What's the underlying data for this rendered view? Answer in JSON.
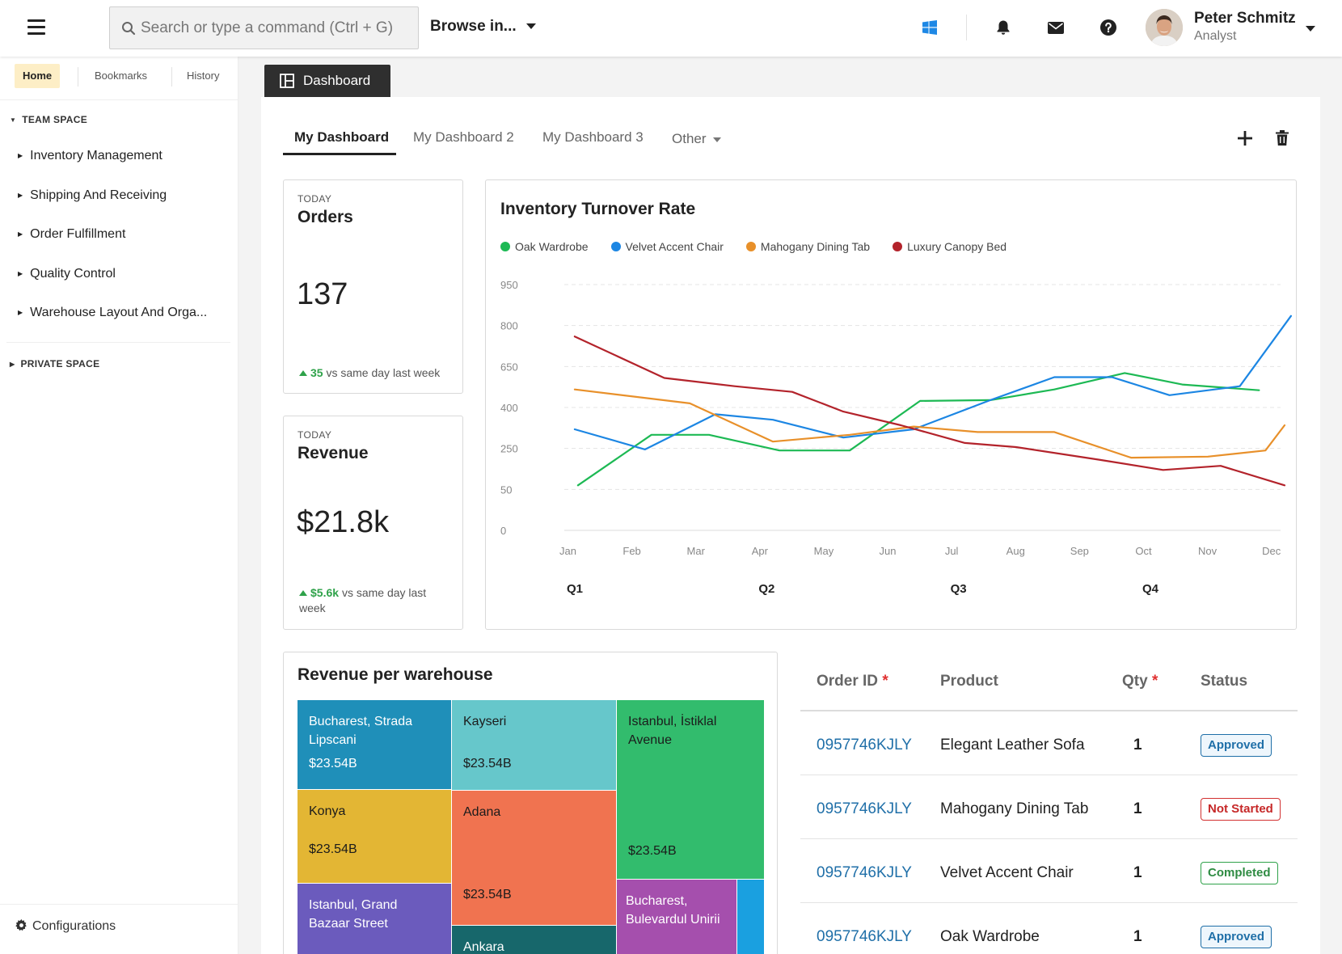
{
  "header": {
    "search_placeholder": "Search or type a command (Ctrl + G)",
    "browse_label": "Browse in...",
    "user": {
      "name": "Peter Schmitz",
      "role": "Analyst"
    }
  },
  "sidebar": {
    "tabs": [
      {
        "label": "Home",
        "active": true
      },
      {
        "label": "Bookmarks",
        "active": false
      },
      {
        "label": "History",
        "active": false
      }
    ],
    "team_space": {
      "label": "TEAM SPACE",
      "items": [
        {
          "label": "Inventory Management"
        },
        {
          "label": "Shipping And Receiving"
        },
        {
          "label": "Order Fulfillment"
        },
        {
          "label": "Quality Control"
        },
        {
          "label": "Warehouse Layout And Orga..."
        }
      ]
    },
    "private_space": {
      "label": "PRIVATE SPACE"
    },
    "footer_label": "Configurations"
  },
  "main": {
    "dashboard_button": "Dashboard",
    "tabs": [
      {
        "label": "My Dashboard",
        "active": true
      },
      {
        "label": "My Dashboard 2",
        "active": false
      },
      {
        "label": "My Dashboard 3",
        "active": false
      },
      {
        "label": "Other",
        "active": false
      }
    ]
  },
  "kpis": [
    {
      "label": "TODAY",
      "title": "Orders",
      "value": "137",
      "delta": "35",
      "delta_text": "vs same day last week"
    },
    {
      "label": "TODAY",
      "title": "Revenue",
      "value": "$21.8k",
      "delta": "$5.6k",
      "delta_text": "vs same day last week"
    }
  ],
  "chart_data": {
    "type": "line",
    "title": "Inventory Turnover Rate",
    "x": [
      "Jan",
      "Feb",
      "Mar",
      "Apr",
      "May",
      "Jun",
      "Jul",
      "Aug",
      "Sep",
      "Oct",
      "Nov",
      "Dec"
    ],
    "y_ticks": [
      950,
      800,
      650,
      400,
      250,
      50,
      0
    ],
    "quarters": [
      "Q1",
      "Q2",
      "Q3",
      "Q4"
    ],
    "grid": true,
    "legend": "top-left",
    "series": [
      {
        "name": "Oak Wardrobe",
        "color": "#1db954",
        "points": [
          [
            0.15,
            70
          ],
          [
            1.3,
            300
          ],
          [
            2.2,
            300
          ],
          [
            3.3,
            240
          ],
          [
            4.4,
            240
          ],
          [
            5.5,
            440
          ],
          [
            6.6,
            445
          ],
          [
            7.6,
            510
          ],
          [
            8.7,
            610
          ],
          [
            9.6,
            540
          ],
          [
            10.8,
            505
          ]
        ]
      },
      {
        "name": "Velvet Accent Chair",
        "color": "#1c86e3",
        "points": [
          [
            0.1,
            320
          ],
          [
            1.2,
            245
          ],
          [
            2.3,
            375
          ],
          [
            3.2,
            355
          ],
          [
            4.3,
            290
          ],
          [
            5.4,
            320
          ],
          [
            6.6,
            445
          ],
          [
            7.6,
            585
          ],
          [
            8.5,
            585
          ],
          [
            9.4,
            475
          ],
          [
            10.5,
            530
          ],
          [
            11.3,
            835
          ]
        ]
      },
      {
        "name": "Mahogany Dining Tab",
        "color": "#e8902a",
        "points": [
          [
            0.1,
            510
          ],
          [
            1.9,
            425
          ],
          [
            3.2,
            275
          ],
          [
            4.4,
            300
          ],
          [
            5.4,
            330
          ],
          [
            6.4,
            310
          ],
          [
            7.6,
            310
          ],
          [
            8.8,
            205
          ],
          [
            10,
            210
          ],
          [
            10.9,
            240
          ],
          [
            11.2,
            335
          ]
        ]
      },
      {
        "name": "Luxury Canopy Bed",
        "color": "#b3232b",
        "points": [
          [
            0.1,
            760
          ],
          [
            1.5,
            580
          ],
          [
            2.6,
            530
          ],
          [
            3.5,
            495
          ],
          [
            4.3,
            385
          ],
          [
            5.2,
            335
          ],
          [
            6.2,
            270
          ],
          [
            7,
            255
          ],
          [
            8.3,
            195
          ],
          [
            9.3,
            145
          ],
          [
            10.2,
            165
          ],
          [
            11.2,
            70
          ]
        ]
      }
    ]
  },
  "treemap": {
    "title": "Revenue per warehouse",
    "tiles": [
      {
        "name": "Bucharest, Strada Lipscani",
        "value": "$23.54B",
        "color": "#1f8fb9",
        "text": "#fff"
      },
      {
        "name": "Kayseri",
        "value": "$23.54B",
        "color": "#66c7cb",
        "text": "#1b1b1b"
      },
      {
        "name": "Istanbul, İstiklal Avenue",
        "value": "$23.54B",
        "color": "#32bc6d",
        "text": "#1b1b1b"
      },
      {
        "name": "Konya",
        "value": "$23.54B",
        "color": "#e3b634",
        "text": "#1b1b1b"
      },
      {
        "name": "Adana",
        "value": "$23.54B",
        "color": "#f07350",
        "text": "#1b1b1b"
      },
      {
        "name": "Istanbul, Grand Bazaar Street",
        "value": "",
        "color": "#6b5bbd",
        "text": "#fff"
      },
      {
        "name": "Ankara",
        "value": "",
        "color": "#17676b",
        "text": "#fff"
      },
      {
        "name": "Bucharest, Bulevardul Unirii",
        "value": "",
        "color": "#a54fad",
        "text": "#fff"
      },
      {
        "name": "",
        "value": "",
        "color": "#1aa0e0",
        "text": "#fff"
      }
    ]
  },
  "orders": {
    "columns": [
      {
        "label": "Order ID",
        "required": "*"
      },
      {
        "label": "Product",
        "required": ""
      },
      {
        "label": "Qty",
        "required": "*"
      },
      {
        "label": "Status",
        "required": ""
      }
    ],
    "rows": [
      {
        "id": "0957746KJLY",
        "product": "Elegant Leather Sofa",
        "qty": "1",
        "status": "Approved"
      },
      {
        "id": "0957746KJLY",
        "product": "Mahogany Dining Tab",
        "qty": "1",
        "status": "Not Started"
      },
      {
        "id": "0957746KJLY",
        "product": "Velvet Accent Chair",
        "qty": "1",
        "status": "Completed"
      },
      {
        "id": "0957746KJLY",
        "product": "Oak Wardrobe",
        "qty": "1",
        "status": "Approved"
      }
    ],
    "status_colors": {
      "Approved": {
        "border": "#1f6fa8",
        "text": "#1f6fa8",
        "bg": "#eef6fc"
      },
      "Not Started": {
        "border": "#d23030",
        "text": "#c62828",
        "bg": "#fff"
      },
      "Completed": {
        "border": "#2fa24a",
        "text": "#2e8b42",
        "bg": "#fff"
      }
    }
  }
}
